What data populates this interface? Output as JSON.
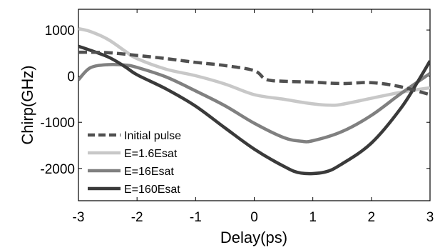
{
  "chart_data": {
    "type": "line",
    "title": "",
    "xlabel": "Delay(ps)",
    "ylabel": "Chirp(GHz)",
    "xlim": [
      -3,
      3
    ],
    "ylim": [
      -2700,
      1450
    ],
    "xticks": [
      -3,
      -2,
      -1,
      0,
      1,
      2,
      3
    ],
    "yticks": [
      -2000,
      -1000,
      0,
      1000
    ],
    "xtick_labels": [
      "-3",
      "-2",
      "-1",
      "0",
      "1",
      "2",
      "3"
    ],
    "ytick_labels": [
      "-2000",
      "-1000",
      "0",
      "1000"
    ],
    "grid": false,
    "legend_position": "bottom-left",
    "series": [
      {
        "name": "Initial pulse",
        "color": "#505050",
        "style": "dashed",
        "x": [
          -3,
          -2.5,
          -2,
          -1.5,
          -1,
          -0.5,
          0,
          0.2,
          0.5,
          1,
          1.5,
          2,
          2.5,
          3
        ],
        "y": [
          520,
          510,
          450,
          380,
          300,
          230,
          120,
          -70,
          -110,
          -130,
          -160,
          -140,
          -230,
          -400
        ]
      },
      {
        "name": "E=1.6Esat",
        "color": "#c8c8c8",
        "style": "solid",
        "x": [
          -3,
          -2.8,
          -2.5,
          -2.2,
          -2,
          -1.5,
          -1,
          -0.5,
          0,
          0.5,
          1,
          1.3,
          1.5,
          2,
          2.5,
          3
        ],
        "y": [
          1030,
          970,
          800,
          540,
          380,
          150,
          10,
          -170,
          -400,
          -500,
          -600,
          -630,
          -610,
          -480,
          -350,
          -250
        ]
      },
      {
        "name": "E=16Esat",
        "color": "#808080",
        "style": "solid",
        "x": [
          -3,
          -2.8,
          -2.5,
          -2.2,
          -2,
          -1.5,
          -1,
          -0.5,
          0,
          0.5,
          0.8,
          1,
          1.5,
          2,
          2.5,
          3
        ],
        "y": [
          -80,
          180,
          250,
          240,
          190,
          -20,
          -320,
          -640,
          -1020,
          -1330,
          -1410,
          -1400,
          -1200,
          -850,
          -380,
          60
        ]
      },
      {
        "name": "E=160Esat",
        "color": "#3a3a3a",
        "style": "solid",
        "x": [
          -3,
          -2.5,
          -2.2,
          -2,
          -1.5,
          -1,
          -0.5,
          0,
          0.5,
          0.8,
          1.2,
          1.5,
          2,
          2.5,
          2.8,
          3
        ],
        "y": [
          650,
          420,
          200,
          30,
          -280,
          -650,
          -1120,
          -1580,
          -1950,
          -2100,
          -2080,
          -1900,
          -1450,
          -700,
          -100,
          330
        ]
      }
    ]
  }
}
